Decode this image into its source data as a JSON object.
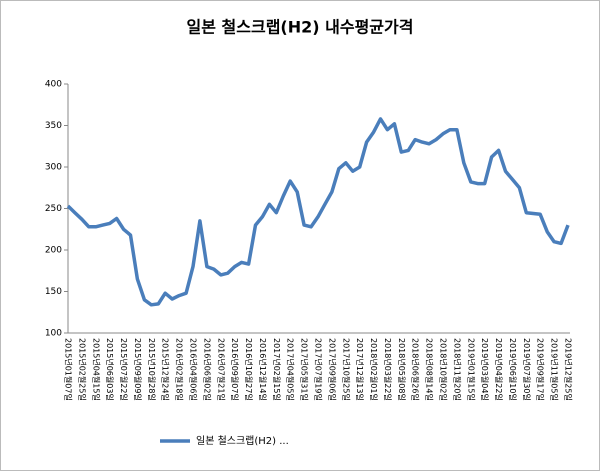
{
  "chart_data": {
    "type": "line",
    "title": "일본 철스크랩(H2) 내수평균가격",
    "categories": [
      "2015년01월07일",
      null,
      "2015년02월25일",
      null,
      "2015년04월15일",
      null,
      "2015년06월03일",
      null,
      "2015년07월22일",
      null,
      "2015년09월09일",
      null,
      "2015년10월28일",
      null,
      "2015년12월24일",
      null,
      "2016년02월18일",
      null,
      "2016년04월06일",
      null,
      "2016년06월02일",
      null,
      "2016년07월21일",
      null,
      "2016년09월07일",
      null,
      "2016년10월27일",
      null,
      "2016년12월14일",
      null,
      "2017년02월15일",
      null,
      "2017년04월05일",
      null,
      "2017년05월31일",
      null,
      "2017년07월19일",
      null,
      "2017년09월06일",
      null,
      "2017년10월25일",
      null,
      "2017년12월13일",
      null,
      "2018년02월01일",
      null,
      "2018년03월22일",
      null,
      "2018년05월08일",
      null,
      "2018년06월26일",
      null,
      "2018년08월14일",
      null,
      "2018년10월02일",
      null,
      "2018년11월20일",
      null,
      "2019년01월15일",
      null,
      "2019년03월04일",
      null,
      "2019년04월22일",
      null,
      "2019년06월10일",
      null,
      "2019년07월30일",
      null,
      "2019년09월17일",
      null,
      "2019년11월05일",
      null,
      "2019년12월25일"
    ],
    "series": [
      {
        "name": "일본 철스크랩(H2) ...",
        "color": "#4a7ebb",
        "values": [
          253,
          245,
          237,
          228,
          228,
          230,
          232,
          238,
          225,
          218,
          165,
          140,
          134,
          135,
          148,
          141,
          145,
          148,
          180,
          235,
          180,
          177,
          170,
          172,
          180,
          185,
          183,
          230,
          240,
          255,
          245,
          265,
          283,
          270,
          230,
          228,
          240,
          255,
          270,
          298,
          305,
          295,
          300,
          330,
          342,
          358,
          345,
          352,
          318,
          320,
          333,
          330,
          328,
          333,
          340,
          345,
          345,
          305,
          282,
          280,
          280,
          312,
          320,
          295,
          285,
          275,
          245,
          244,
          243,
          222,
          210,
          208,
          230
        ]
      }
    ],
    "ylim": [
      100,
      400
    ],
    "yticks": [
      100,
      150,
      200,
      250,
      300,
      350,
      400
    ]
  }
}
